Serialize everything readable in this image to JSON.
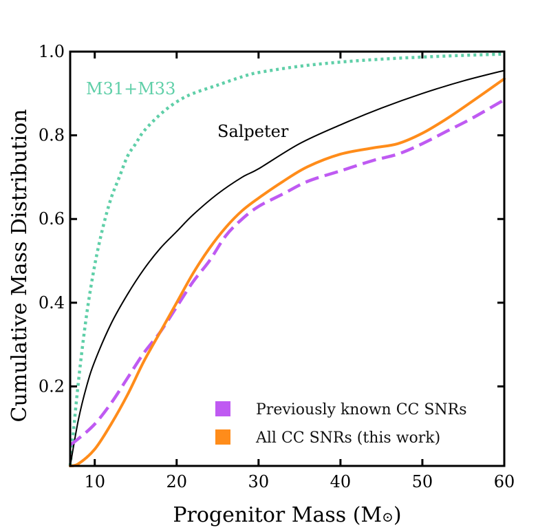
{
  "chart_data": {
    "type": "line",
    "xlabel": "Progenitor Mass (M",
    "xlabel_sub": "⊙",
    "xlabel_close": ")",
    "ylabel": "Cumulative Mass Distribution",
    "xlim": [
      7,
      60
    ],
    "ylim": [
      0.01,
      1.0
    ],
    "xticks": [
      10,
      20,
      30,
      40,
      50,
      60
    ],
    "yticks": [
      0.2,
      0.4,
      0.6,
      0.8,
      1.0
    ],
    "ytick_labels": [
      "0.2",
      "0.4",
      "0.6",
      "0.8",
      "1.0"
    ],
    "series": [
      {
        "name": "M31+M33",
        "color": "#5fcfa8",
        "style": "dotted",
        "x": [
          7,
          8,
          9,
          10,
          11,
          12,
          13,
          14,
          15,
          16,
          18,
          20,
          22,
          25,
          28,
          30,
          35,
          40,
          45,
          50,
          55,
          60
        ],
        "y": [
          0.01,
          0.21,
          0.37,
          0.49,
          0.58,
          0.65,
          0.7,
          0.75,
          0.78,
          0.81,
          0.85,
          0.88,
          0.9,
          0.92,
          0.94,
          0.95,
          0.965,
          0.975,
          0.982,
          0.987,
          0.991,
          0.994
        ]
      },
      {
        "name": "Salpeter",
        "color": "#000000",
        "style": "solid",
        "x": [
          7,
          8,
          9,
          10,
          12,
          14,
          16,
          18,
          20,
          22,
          25,
          28,
          30,
          35,
          40,
          45,
          50,
          55,
          60
        ],
        "y": [
          0.01,
          0.12,
          0.2,
          0.26,
          0.35,
          0.42,
          0.48,
          0.53,
          0.57,
          0.61,
          0.66,
          0.7,
          0.72,
          0.78,
          0.825,
          0.865,
          0.9,
          0.93,
          0.955
        ]
      },
      {
        "name": "Previously known CC SNRs",
        "color": "#bf5af2",
        "style": "dashed",
        "x": [
          7,
          8,
          10,
          12,
          14,
          16,
          18,
          20,
          22,
          24,
          26,
          28,
          30,
          33,
          36,
          40,
          44,
          47,
          50,
          53,
          56,
          60
        ],
        "y": [
          0.06,
          0.075,
          0.11,
          0.16,
          0.22,
          0.28,
          0.33,
          0.39,
          0.45,
          0.5,
          0.56,
          0.6,
          0.63,
          0.66,
          0.69,
          0.715,
          0.74,
          0.755,
          0.78,
          0.81,
          0.84,
          0.885
        ]
      },
      {
        "name": "All CC SNRs (this work)",
        "color": "#ff8c1a",
        "style": "solid",
        "x": [
          7,
          8,
          10,
          12,
          14,
          16,
          18,
          20,
          22,
          24,
          26,
          28,
          30,
          33,
          36,
          40,
          44,
          47,
          50,
          53,
          56,
          60
        ],
        "y": [
          0.01,
          0.015,
          0.05,
          0.11,
          0.18,
          0.26,
          0.33,
          0.4,
          0.47,
          0.53,
          0.58,
          0.62,
          0.65,
          0.69,
          0.725,
          0.755,
          0.77,
          0.78,
          0.805,
          0.84,
          0.88,
          0.935
        ]
      }
    ],
    "annotations": [
      {
        "text": "M31+M33",
        "color": "#5fcfa8"
      },
      {
        "text": "Salpeter",
        "color": "#000000"
      }
    ],
    "legend": {
      "placement": "bottom-right",
      "entries": [
        {
          "label": "Previously known CC SNRs",
          "color": "#bf5af2"
        },
        {
          "label": "All CC SNRs (this work)",
          "color": "#ff8c1a"
        }
      ]
    }
  }
}
